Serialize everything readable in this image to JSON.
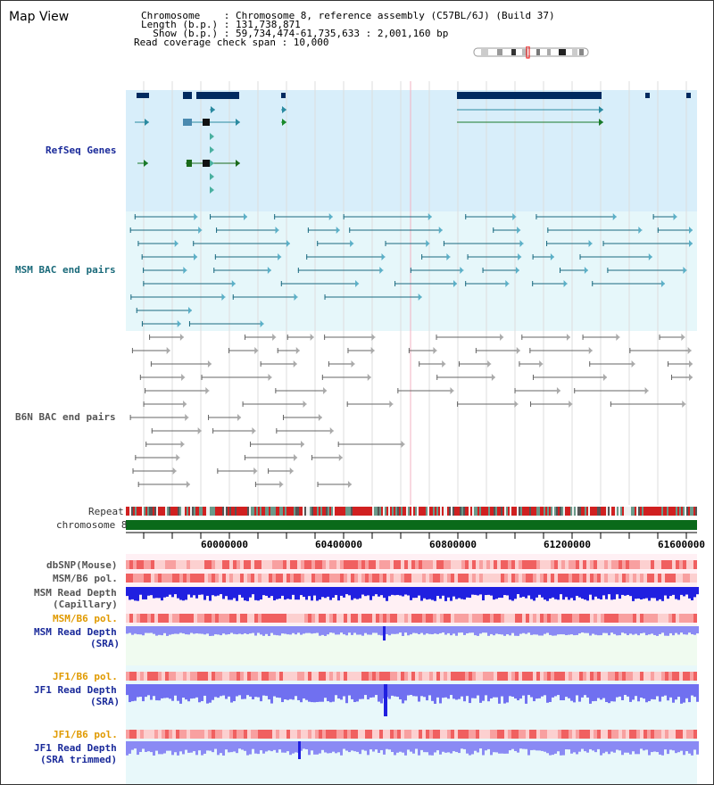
{
  "view_title": "Map View",
  "header": {
    "chromosome_line": "Chromosome    : Chromosome 8, reference assembly (C57BL/6J) (Build 37)",
    "length_line": "Length (b.p.) : 131,738,871",
    "show_line": "  Show (b.p.) : 59,734,474-61,735,633 : 2,001,160 bp",
    "coverage_line": "Read coverage check span : 10,000"
  },
  "tracks": {
    "refseq": "RefSeq Genes",
    "msm_bac": "MSM BAC end pairs",
    "b6n_bac": "B6N BAC end pairs",
    "repeat": "Repeat",
    "chromosome": "chromosome 8",
    "dbsnp": "dbSNP(Mouse)",
    "msm_b6_pol_1": "MSM/B6 pol.",
    "msm_read_depth_cap_1": "MSM Read Depth",
    "msm_read_depth_cap_2": "(Capillary)",
    "msm_b6_pol_2": "MSM/B6 pol.",
    "msm_read_depth_sra_1": "MSM Read Depth",
    "msm_read_depth_sra_2": "(SRA)",
    "jf1_b6_pol_1": "JF1/B6 pol.",
    "jf1_read_depth_sra_1": "JF1 Read Depth",
    "jf1_read_depth_sra_2": "(SRA)",
    "jf1_b6_pol_2": "JF1/B6 pol.",
    "jf1_read_depth_trim_1": "JF1 Read Depth",
    "jf1_read_depth_trim_2": "(SRA trimmed)"
  },
  "axis": {
    "ticks": [
      "60000000",
      "60400000",
      "60800000",
      "61200000",
      "61600000"
    ]
  },
  "colors": {
    "refseq_bg": "#d8eefa",
    "bac_bg": "#e6f7fa",
    "gene_dark": "#002a60",
    "teal": "#1a6a80",
    "chrom_green": "#0a6a1a",
    "depth_blue": "#2020e0",
    "depth_light": "#7070f0"
  }
}
